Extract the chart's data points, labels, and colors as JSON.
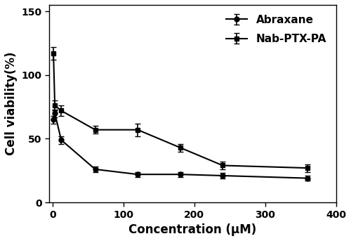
{
  "abraxane_x": [
    1,
    3,
    12,
    60,
    120,
    180,
    240,
    360
  ],
  "abraxane_y": [
    65,
    70,
    49,
    26,
    22,
    22,
    21,
    19
  ],
  "abraxane_yerr": [
    3,
    3,
    3,
    2,
    2,
    2,
    2,
    2
  ],
  "nabptxpa_x": [
    1,
    3,
    12,
    60,
    120,
    180,
    240,
    360
  ],
  "nabptxpa_y": [
    117,
    76,
    72,
    57,
    57,
    43,
    29,
    27
  ],
  "nabptxpa_yerr": [
    5,
    4,
    4,
    3,
    5,
    3,
    3,
    3
  ],
  "xlabel": "Concentration (μM)",
  "ylabel": "Cell viability(%)",
  "xlim": [
    -5,
    400
  ],
  "ylim": [
    0,
    155
  ],
  "yticks": [
    0,
    50,
    100,
    150
  ],
  "xticks": [
    0,
    100,
    200,
    300,
    400
  ],
  "legend_labels": [
    "Abraxane",
    "Nab-PTX-PA"
  ],
  "line_color": "#000000",
  "marker_abraxane": "o",
  "marker_nabptxpa": "s",
  "linewidth": 1.5,
  "markersize": 5,
  "capsize": 3,
  "elinewidth": 1.2,
  "legend_fontsize": 11,
  "axis_label_fontsize": 12,
  "tick_fontsize": 10,
  "figsize": [
    5.0,
    3.43
  ],
  "dpi": 100
}
